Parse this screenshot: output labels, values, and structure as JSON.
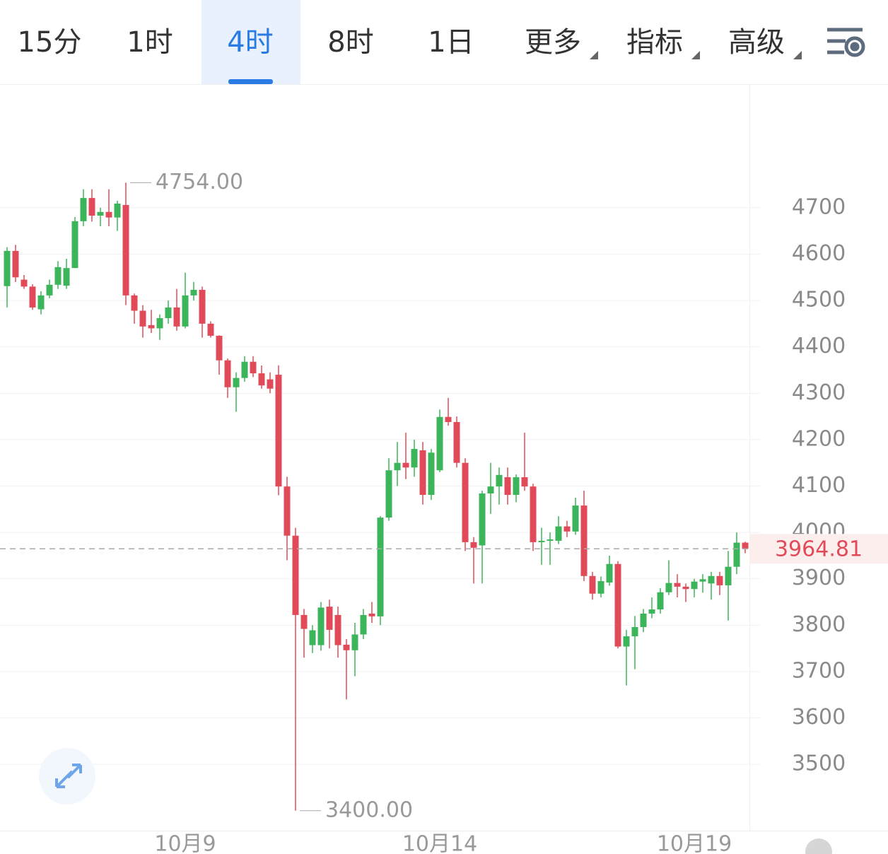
{
  "tabs": [
    "15分",
    "1时",
    "4时",
    "8时",
    "1日",
    "更多",
    "指标",
    "高级"
  ],
  "active_tab": 2,
  "chart_data": {
    "type": "candlestick",
    "categories": [
      null,
      null,
      null,
      null,
      null,
      null,
      null,
      null,
      null,
      null,
      null,
      null,
      null,
      null,
      null,
      null,
      null,
      null,
      null,
      null,
      null,
      "10月9",
      null,
      null,
      null,
      null,
      null,
      null,
      null,
      null,
      null,
      null,
      null,
      null,
      null,
      null,
      null,
      null,
      null,
      null,
      null,
      null,
      null,
      null,
      null,
      null,
      null,
      null,
      null,
      null,
      null,
      "10月14",
      null,
      null,
      null,
      null,
      null,
      null,
      null,
      null,
      null,
      null,
      null,
      null,
      null,
      null,
      null,
      null,
      null,
      null,
      null,
      null,
      null,
      null,
      null,
      null,
      null,
      null,
      null,
      null,
      null,
      "10月19",
      null,
      null,
      null,
      null,
      null,
      null
    ],
    "open": [
      4531,
      4607,
      4545,
      4530,
      4481,
      4511,
      4534,
      4532,
      4570,
      4671,
      4721,
      4683,
      4691,
      4679,
      4706,
      4511,
      4478,
      4447,
      4440,
      4462,
      4485,
      4444,
      4511,
      4523,
      4450,
      4424,
      4371,
      4313,
      4333,
      4368,
      4343,
      4330,
      4340,
      4099,
      3993,
      3822,
      3757,
      3757,
      3840,
      3822,
      3758,
      3746,
      3780,
      3825,
      3819,
      4032,
      4134,
      4150,
      4140,
      4177,
      4081,
      4134,
      4249,
      4238,
      4150,
      3979,
      3972,
      4084,
      4099,
      4119,
      4081,
      4119,
      4099,
      3979,
      3982,
      3982,
      4013,
      4002,
      4058,
      3906,
      3868,
      3892,
      3932,
      3754,
      3776,
      3796,
      3825,
      3834,
      3871,
      3891,
      3883,
      3878,
      3894,
      3890,
      3906,
      3886,
      3926,
      3978
    ],
    "high": [
      4615,
      4620,
      4555,
      4535,
      4520,
      4545,
      4585,
      4590,
      4680,
      4740,
      4740,
      4700,
      4740,
      4715,
      4754,
      4515,
      4490,
      4480,
      4470,
      4500,
      4525,
      4560,
      4540,
      4530,
      4455,
      4425,
      4375,
      4345,
      4380,
      4380,
      4360,
      4345,
      4360,
      4120,
      4010,
      3835,
      3800,
      3850,
      3855,
      3840,
      3770,
      3805,
      3835,
      3850,
      4035,
      4160,
      4195,
      4215,
      4200,
      4195,
      4180,
      4265,
      4290,
      4250,
      4160,
      3990,
      4090,
      4150,
      4140,
      4140,
      4125,
      4215,
      4105,
      4010,
      4000,
      4035,
      4025,
      4075,
      4090,
      3915,
      3905,
      3950,
      3938,
      3790,
      3820,
      3835,
      3860,
      3880,
      3940,
      3910,
      3890,
      3900,
      3910,
      3915,
      3915,
      3960,
      4000,
      3980
    ],
    "low": [
      4485,
      4540,
      4525,
      4480,
      4470,
      4505,
      4525,
      4525,
      4570,
      4660,
      4670,
      4660,
      4660,
      4650,
      4490,
      4450,
      4420,
      4430,
      4415,
      4450,
      4435,
      4440,
      4500,
      4420,
      4420,
      4340,
      4290,
      4260,
      4325,
      4335,
      4310,
      4300,
      4080,
      3940,
      3400,
      3730,
      3740,
      3745,
      3750,
      3730,
      3640,
      3690,
      3770,
      3805,
      3800,
      4025,
      4100,
      4115,
      4120,
      4060,
      4070,
      4130,
      4230,
      4140,
      3960,
      3890,
      3890,
      4040,
      4060,
      4060,
      4065,
      4090,
      3960,
      3930,
      3930,
      3975,
      3990,
      3995,
      3895,
      3855,
      3860,
      3885,
      3750,
      3670,
      3705,
      3785,
      3815,
      3825,
      3865,
      3860,
      3850,
      3860,
      3870,
      3855,
      3865,
      3810,
      3910,
      3955
    ],
    "close": [
      4607,
      4550,
      4530,
      4485,
      4511,
      4534,
      4572,
      4570,
      4671,
      4721,
      4683,
      4691,
      4679,
      4709,
      4511,
      4478,
      4444,
      4440,
      4462,
      4485,
      4444,
      4511,
      4523,
      4450,
      4424,
      4371,
      4313,
      4333,
      4368,
      4343,
      4317,
      4310,
      4099,
      3993,
      3822,
      3792,
      3789,
      3838,
      3790,
      3757,
      3746,
      3780,
      3822,
      3819,
      4032,
      4134,
      4150,
      4140,
      4180,
      4081,
      4172,
      4249,
      4238,
      4150,
      3979,
      3967,
      4084,
      4099,
      4124,
      4081,
      4119,
      4099,
      3979,
      3982,
      3985,
      4013,
      4002,
      4058,
      3906,
      3868,
      3895,
      3932,
      3754,
      3776,
      3796,
      3825,
      3834,
      3871,
      3891,
      3883,
      3878,
      3894,
      3899,
      3906,
      3886,
      3926,
      3978,
      3964.81
    ],
    "up_color": "#3cb55a",
    "down_color": "#e14b59",
    "ylim": [
      3357,
      4965
    ],
    "yticks": [
      3500,
      3600,
      3700,
      3800,
      3900,
      4000,
      4100,
      4200,
      4300,
      4400,
      4500,
      4600,
      4700
    ],
    "grid": true,
    "max_label": {
      "value": 4754,
      "label": "4754.00"
    },
    "min_label": {
      "value": 3400,
      "label": "3400.00"
    },
    "last_price": 3964.81,
    "last_price_color": "#e14b59"
  }
}
